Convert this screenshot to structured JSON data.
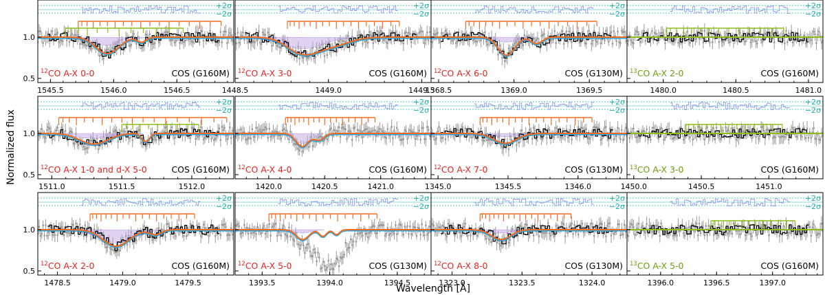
{
  "figure": {
    "ylabel": "Normalized flux",
    "xlabel": "Wavelength [Å]",
    "yticks": [
      "1.0",
      "0.5"
    ],
    "sigma_labels": [
      "+2σ",
      "−2σ"
    ]
  },
  "colors": {
    "data": "#999999",
    "binned": "#000000",
    "model": "#f26b21",
    "model_alt": "#29a3dd",
    "component": "#b79ee0",
    "residual": "#8f96f0",
    "sigma": "#20b2aa",
    "co12": "#e8231d",
    "co13": "#6c9c0e",
    "tick_orange": "#f26b21",
    "tick_green": "#8dbb1a"
  },
  "chart_data": [
    {
      "type": "line",
      "species": "12CO",
      "label": "CO A-X 0-0",
      "instrument": "COS (G160M)",
      "xlim": [
        1545.4,
        1546.95
      ],
      "xticks": [
        1545.5,
        1546.0,
        1546.5
      ],
      "ylim": [
        0.45,
        1.45
      ],
      "orange_ticks": {
        "start": 1545.72,
        "end": 1546.85,
        "n": 18
      },
      "green_ticks": {
        "start": 1545.62,
        "end": 1546.55,
        "n": 12
      },
      "absorption": [
        {
          "center": 1545.95,
          "width": 0.2,
          "depth": 0.2
        },
        {
          "center": 1546.22,
          "width": 0.08,
          "depth": 0.06
        }
      ],
      "fill_depth": 0.1
    },
    {
      "type": "line",
      "species": "12CO",
      "label": "CO A-X 3-0",
      "instrument": "COS (G160M)",
      "xlim": [
        1448.5,
        1449.55
      ],
      "xticks": [
        1448.5,
        1449.0,
        1449.5
      ],
      "ylim": [
        0.45,
        1.45
      ],
      "orange_ticks": {
        "start": 1448.78,
        "end": 1449.38,
        "n": 18
      },
      "absorption": [
        {
          "center": 1448.86,
          "width": 0.18,
          "depth": 0.19
        },
        {
          "center": 1449.02,
          "width": 0.2,
          "depth": 0.1
        }
      ],
      "fill_depth": 0.14
    },
    {
      "type": "line",
      "species": "12CO",
      "label": "CO A-X 6-0",
      "instrument": "COS (G130M)",
      "xlim": [
        1368.45,
        1369.75
      ],
      "xticks": [
        1368.5,
        1369.0,
        1369.5
      ],
      "ylim": [
        0.45,
        1.45
      ],
      "orange_ticks": {
        "start": 1368.68,
        "end": 1369.55,
        "n": 18
      },
      "absorption": [
        {
          "center": 1368.95,
          "width": 0.12,
          "depth": 0.22
        },
        {
          "center": 1369.15,
          "width": 0.08,
          "depth": 0.08
        }
      ],
      "fill_depth": 0.06
    },
    {
      "type": "line",
      "species": "13CO",
      "label": "CO A-X 2-0",
      "instrument": "COS (G160M)",
      "xlim": [
        1479.75,
        1481.1
      ],
      "xticks": [
        1480.0,
        1480.5,
        1481.0
      ],
      "ylim": [
        0.45,
        1.45
      ],
      "green_ticks": {
        "start": 1480.02,
        "end": 1480.83,
        "n": 14
      },
      "absorption": [],
      "fill_depth": 0
    },
    {
      "type": "line",
      "species": "12CO",
      "label": "CO A-X 1-0  and  d-X 5-0",
      "instrument": "COS (G160M)",
      "xlim": [
        1510.9,
        1512.3
      ],
      "xticks": [
        1511.0,
        1511.5,
        1512.0
      ],
      "ylim": [
        0.45,
        1.45
      ],
      "orange_ticks": {
        "start": 1511.05,
        "end": 1512.25,
        "n": 18
      },
      "green_ticks": {
        "start": 1511.5,
        "end": 1512.05,
        "n": 10
      },
      "absorption": [
        {
          "center": 1511.3,
          "width": 0.22,
          "depth": 0.13
        },
        {
          "center": 1511.67,
          "width": 0.06,
          "depth": 0.1
        }
      ],
      "fill_depth": 0.06
    },
    {
      "type": "line",
      "species": "12CO",
      "label": "CO A-X 4-0",
      "instrument": "COS (G160M)",
      "xlim": [
        1419.7,
        1421.45
      ],
      "xticks": [
        1420.0,
        1420.5,
        1421.0
      ],
      "ylim": [
        0.45,
        1.45
      ],
      "orange_ticks": {
        "start": 1420.15,
        "end": 1420.95,
        "n": 18
      },
      "absorption": [
        {
          "center": 1420.3,
          "width": 0.12,
          "depth": 0.16
        },
        {
          "center": 1420.45,
          "width": 0.1,
          "depth": 0.08
        }
      ],
      "fill_depth": 0.12
    },
    {
      "type": "line",
      "species": "12CO",
      "label": "CO A-X 7-0",
      "instrument": "COS (G130M)",
      "xlim": [
        1344.95,
        1346.35
      ],
      "xticks": [
        1345.0,
        1345.5,
        1346.0
      ],
      "ylim": [
        0.45,
        1.45
      ],
      "orange_ticks": {
        "start": 1345.3,
        "end": 1346.1,
        "n": 18
      },
      "absorption": [
        {
          "center": 1345.48,
          "width": 0.18,
          "depth": 0.12
        }
      ],
      "fill_depth": 0.04
    },
    {
      "type": "line",
      "species": "13CO",
      "label": "CO A-X 3-0",
      "instrument": "COS (G160M)",
      "xlim": [
        1449.95,
        1451.4
      ],
      "xticks": [
        1450.0,
        1450.5,
        1451.0
      ],
      "ylim": [
        0.45,
        1.45
      ],
      "green_ticks": {
        "start": 1450.38,
        "end": 1451.1,
        "n": 14
      },
      "absorption": [],
      "fill_depth": 0
    },
    {
      "type": "line",
      "species": "12CO",
      "label": "CO A-X 2-0",
      "instrument": "COS (G160M)",
      "xlim": [
        1478.35,
        1479.85
      ],
      "xticks": [
        1478.5,
        1479.0,
        1479.5
      ],
      "ylim": [
        0.45,
        1.45
      ],
      "orange_ticks": {
        "start": 1478.75,
        "end": 1479.55,
        "n": 18
      },
      "absorption": [
        {
          "center": 1478.95,
          "width": 0.22,
          "depth": 0.2
        },
        {
          "center": 1479.25,
          "width": 0.1,
          "depth": 0.06
        }
      ],
      "fill_depth": 0.16
    },
    {
      "type": "line",
      "species": "12CO",
      "label": "CO A-X 5-0",
      "instrument": "COS (G130M)",
      "xlim": [
        1393.3,
        1394.75
      ],
      "xticks": [
        1393.5,
        1394.0,
        1394.5
      ],
      "ylim": [
        0.45,
        1.45
      ],
      "orange_ticks": {
        "start": 1393.55,
        "end": 1394.35,
        "n": 18
      },
      "absorption": [
        {
          "center": 1393.8,
          "width": 0.1,
          "depth": 0.12
        },
        {
          "center": 1393.95,
          "width": 0.06,
          "depth": 0.08
        },
        {
          "center": 1394.05,
          "width": 0.05,
          "depth": 0.06
        }
      ],
      "fill_depth": 0.04,
      "dip_data": {
        "center": 1394.0,
        "width": 0.25,
        "depth": 0.4
      }
    },
    {
      "type": "line",
      "species": "12CO",
      "label": "CO A-X 8-0",
      "instrument": "COS (G130M)",
      "xlim": [
        1322.85,
        1324.25
      ],
      "xticks": [
        1323.0,
        1323.5,
        1324.0
      ],
      "ylim": [
        0.45,
        1.45
      ],
      "orange_ticks": {
        "start": 1323.2,
        "end": 1323.85,
        "n": 18
      },
      "absorption": [
        {
          "center": 1323.35,
          "width": 0.15,
          "depth": 0.12
        }
      ],
      "fill_depth": 0.04
    },
    {
      "type": "line",
      "species": "13CO",
      "label": "CO A-X 5-0",
      "instrument": "COS (G160M)",
      "xlim": [
        1395.7,
        1397.45
      ],
      "xticks": [
        1396.0,
        1396.5,
        1397.0
      ],
      "ylim": [
        0.45,
        1.45
      ],
      "green_ticks": {
        "start": 1396.45,
        "end": 1397.2,
        "n": 14
      },
      "absorption": [],
      "fill_depth": 0
    }
  ]
}
